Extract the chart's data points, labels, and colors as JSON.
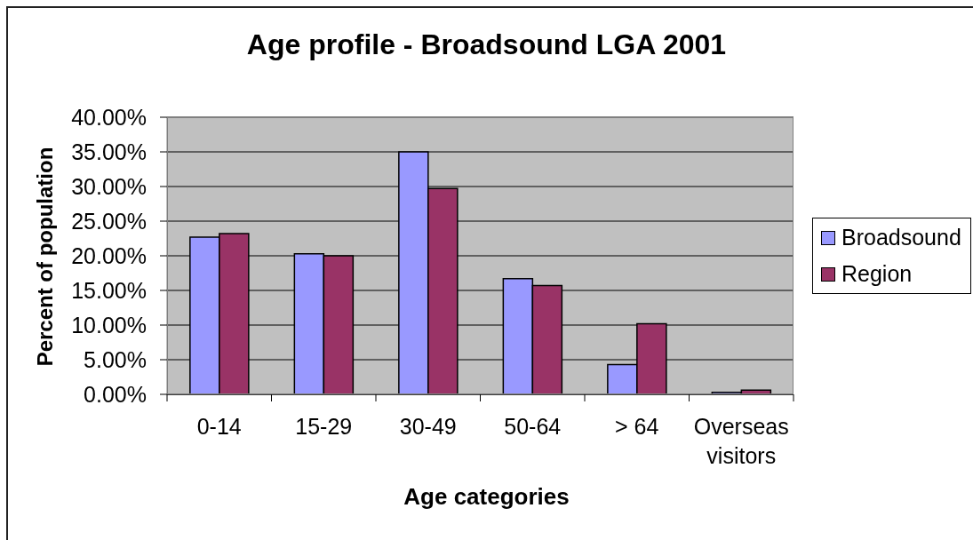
{
  "chart_data": {
    "type": "bar",
    "title": "Age profile - Broadsound LGA 2001",
    "xlabel": "Age categories",
    "ylabel": "Percent of population",
    "categories": [
      "0-14",
      "15-29",
      "30-49",
      "50-64",
      "> 64",
      "Overseas visitors"
    ],
    "series": [
      {
        "name": "Broadsound",
        "color": "#9999ff",
        "values": [
          22.7,
          20.3,
          35.0,
          16.7,
          4.3,
          0.3
        ]
      },
      {
        "name": "Region",
        "color": "#993366",
        "values": [
          23.2,
          20.0,
          29.7,
          15.7,
          10.2,
          0.6
        ]
      }
    ],
    "ylim": [
      0,
      40
    ],
    "yticks": [
      {
        "value": 0,
        "label": "0.00%"
      },
      {
        "value": 5,
        "label": "5.00%"
      },
      {
        "value": 10,
        "label": "10.00%"
      },
      {
        "value": 15,
        "label": "15.00%"
      },
      {
        "value": 20,
        "label": "20.00%"
      },
      {
        "value": 25,
        "label": "25.00%"
      },
      {
        "value": 30,
        "label": "30.00%"
      },
      {
        "value": 35,
        "label": "35.00%"
      },
      {
        "value": 40,
        "label": "40.00%"
      }
    ],
    "grid": "y",
    "legend": "right"
  }
}
